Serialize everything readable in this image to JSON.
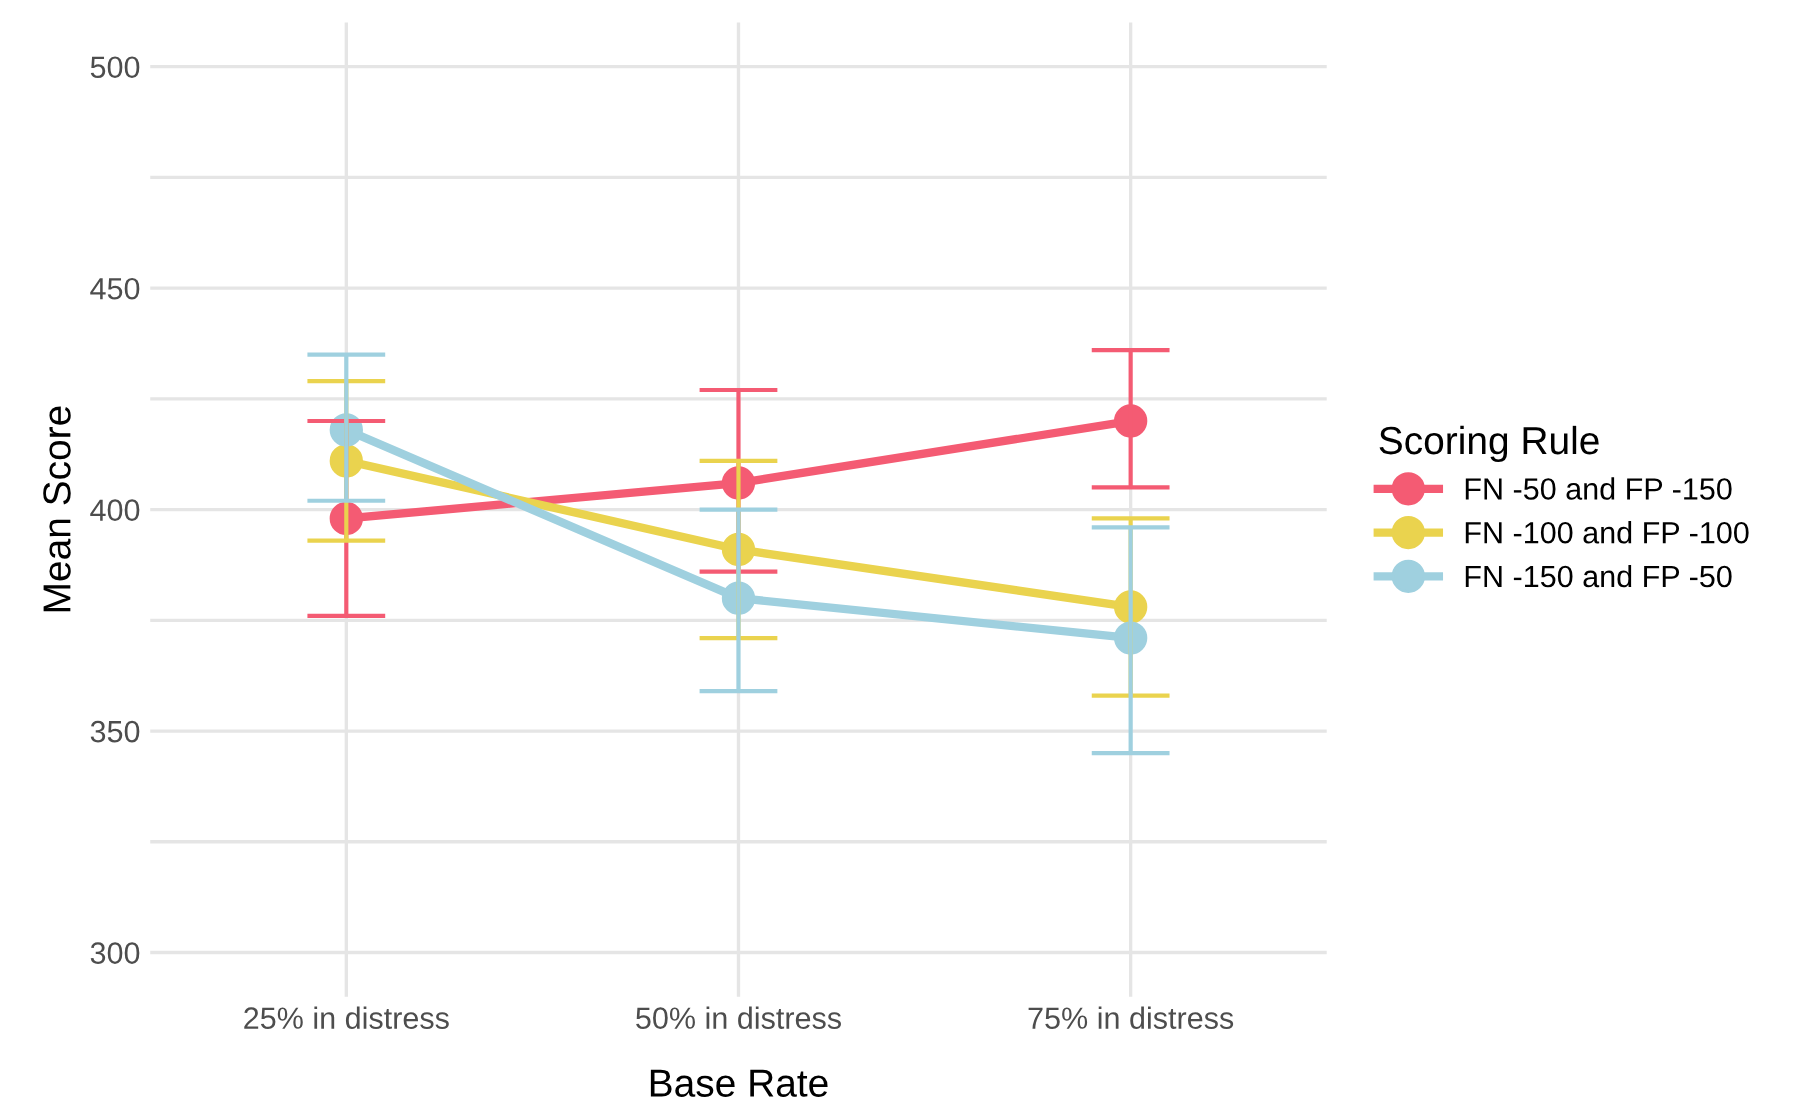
{
  "chart_data": {
    "type": "line",
    "xlabel": "Base Rate",
    "ylabel": "Mean Score",
    "legend_title": "Scoring Rule",
    "categories": [
      "25% in distress",
      "50% in distress",
      "75% in distress"
    ],
    "series": [
      {
        "name": "FN -50 and FP -150",
        "color": "#f45b73",
        "values": [
          398,
          406,
          420
        ],
        "errors": [
          [
            376,
            420
          ],
          [
            386,
            427
          ],
          [
            405,
            436
          ]
        ]
      },
      {
        "name": "FN -100 and FP -100",
        "color": "#ead34e",
        "values": [
          411,
          391,
          378
        ],
        "errors": [
          [
            393,
            429
          ],
          [
            371,
            411
          ],
          [
            358,
            398
          ]
        ]
      },
      {
        "name": "FN -150 and FP -50",
        "color": "#9fd0df",
        "values": [
          418,
          380,
          371
        ],
        "errors": [
          [
            402,
            435
          ],
          [
            359,
            400
          ],
          [
            345,
            396
          ]
        ]
      }
    ],
    "ylim": [
      290,
      510
    ],
    "yticks": [
      300,
      {
        "value": 325,
        "label": null
      },
      350,
      {
        "value": 375,
        "label": null
      },
      400,
      {
        "value": 425,
        "label": null
      },
      450,
      {
        "value": 475,
        "label": null
      },
      500
    ],
    "grid": true,
    "legend": "right",
    "marker": "circle",
    "line_style": "solid"
  }
}
